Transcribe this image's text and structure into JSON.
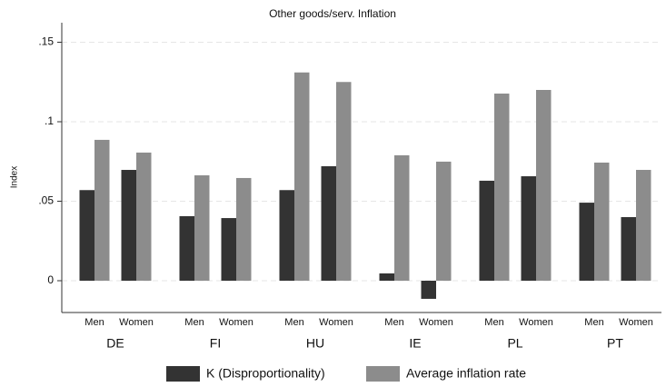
{
  "chart_data": {
    "type": "grouped-bar",
    "title": "Other goods/serv. Inflation",
    "y_label": "Index",
    "groups": [
      {
        "label": "DE",
        "subcategories": [
          "Men",
          "Women"
        ]
      },
      {
        "label": "FI",
        "subcategories": [
          "Men",
          "Women"
        ]
      },
      {
        "label": "HU",
        "subcategories": [
          "Men",
          "Women"
        ]
      },
      {
        "label": "IE",
        "subcategories": [
          "Men",
          "Women"
        ]
      },
      {
        "label": "PL",
        "subcategories": [
          "Men",
          "Women"
        ]
      },
      {
        "label": "PT",
        "subcategories": [
          "Men",
          "Women"
        ]
      }
    ],
    "series": [
      {
        "name": "K (Disproportionality)",
        "color": "#333333",
        "values": [
          0.057,
          0.0697,
          0.0406,
          0.0394,
          0.057,
          0.072,
          0.0046,
          -0.0114,
          0.0629,
          0.0657,
          0.0491,
          0.04
        ]
      },
      {
        "name": "Average inflation rate",
        "color": "#8c8c8c",
        "values": [
          0.0886,
          0.0806,
          0.0663,
          0.0646,
          0.131,
          0.125,
          0.0789,
          0.0749,
          0.1177,
          0.12,
          0.0743,
          0.0697
        ]
      }
    ],
    "ylim": [
      -0.02,
      0.16
    ],
    "yticks": [
      0,
      {
        "value": 0.05,
        "label": ".05"
      },
      {
        "value": 0.1,
        "label": ".1"
      },
      {
        "value": 0.15,
        "label": ".15"
      }
    ],
    "grid": true
  }
}
